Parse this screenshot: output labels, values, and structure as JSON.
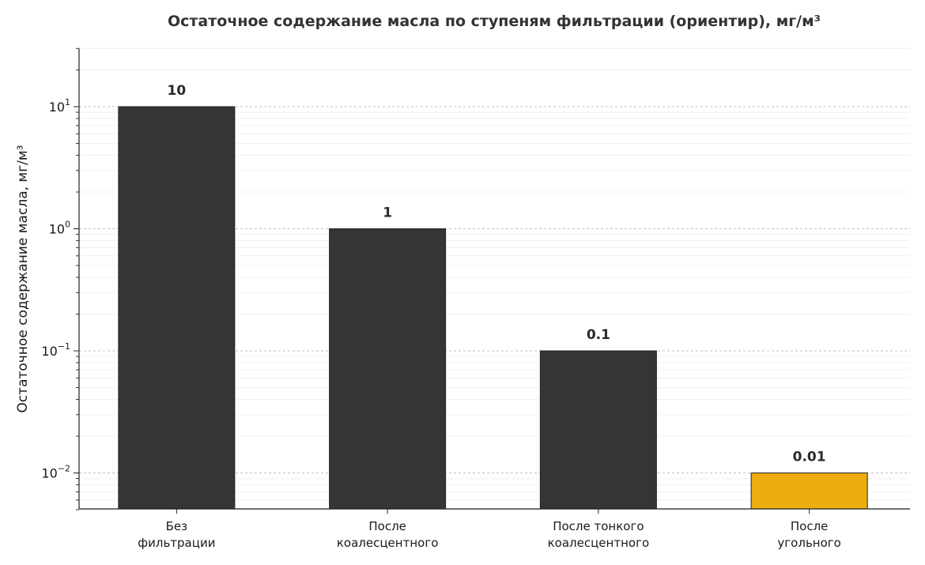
{
  "chart_data": {
    "type": "bar",
    "title": "Остаточное содержание масла по ступеням фильтрации (ориентир), мг/м³",
    "ylabel": "Остаточное содержание масла, мг/м³",
    "xlabel": "",
    "yscale": "log",
    "ylim": [
      0.005,
      30
    ],
    "grid": "y",
    "y_ticks": [
      {
        "value": 10,
        "base": "10",
        "exp": "1"
      },
      {
        "value": 1,
        "base": "10",
        "exp": "0"
      },
      {
        "value": 0.1,
        "base": "10",
        "exp": "−1"
      },
      {
        "value": 0.01,
        "base": "10",
        "exp": "−2"
      }
    ],
    "categories": [
      [
        "Без",
        "фильтрации"
      ],
      [
        "После",
        "коалесцентного"
      ],
      [
        "После тонкого",
        "коалесцентного"
      ],
      [
        "После",
        "угольного"
      ]
    ],
    "values": [
      10,
      1,
      0.1,
      0.01
    ],
    "data_labels": [
      "10",
      "1",
      "0.1",
      "0.01"
    ],
    "colors": [
      "#363434",
      "#363434",
      "#363434",
      "#ecad10"
    ],
    "edge_color": "#222222"
  }
}
